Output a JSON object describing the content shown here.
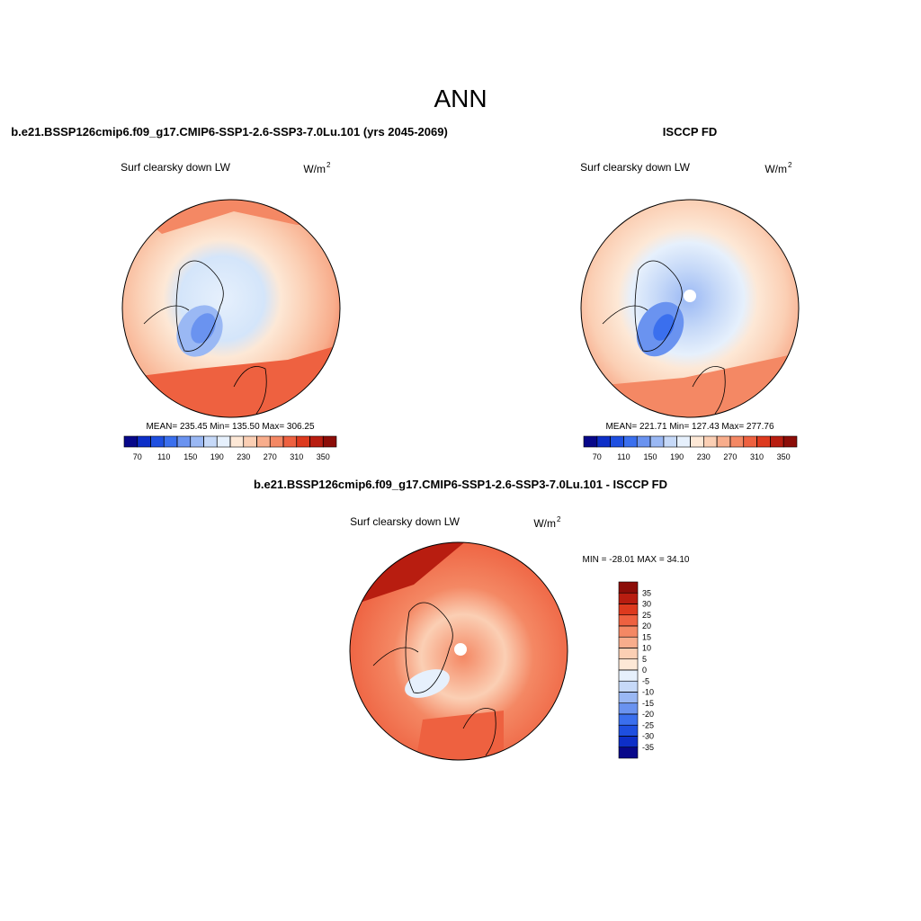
{
  "title": "ANN",
  "panels": [
    {
      "title": "b.e21.BSSP126cmip6.f09_g17.CMIP6-SSP1-2.6-SSP3-7.0Lu.101 (yrs 2045-2069)",
      "variable": "Surf clearsky down LW",
      "units": "W/m",
      "units_sup": "2",
      "stats": "MEAN= 235.45  Min= 135.50  Max= 306.25",
      "colorbar": {
        "levels": [
          70,
          90,
          110,
          130,
          150,
          170,
          190,
          210,
          230,
          250,
          270,
          290,
          310,
          330,
          350
        ],
        "ticks": [
          70,
          110,
          150,
          190,
          230,
          270,
          310,
          350
        ],
        "colors": [
          "#08088a",
          "#0d2fc8",
          "#1e4fe0",
          "#3a6fee",
          "#6a93f0",
          "#9ab8f4",
          "#c6d9f8",
          "#e6f0fc",
          "#fde8d6",
          "#fbcfb4",
          "#f8ad8c",
          "#f48864",
          "#ee6140",
          "#dd3a1e",
          "#b81d10",
          "#8c0d08"
        ]
      }
    },
    {
      "title": "ISCCP FD",
      "variable": "Surf clearsky down LW",
      "units": "W/m",
      "units_sup": "2",
      "stats": "MEAN= 221.71  Min= 127.43  Max= 277.76",
      "colorbar": {
        "levels": [
          70,
          90,
          110,
          130,
          150,
          170,
          190,
          210,
          230,
          250,
          270,
          290,
          310,
          330,
          350
        ],
        "ticks": [
          70,
          110,
          150,
          190,
          230,
          270,
          310,
          350
        ],
        "colors": [
          "#08088a",
          "#0d2fc8",
          "#1e4fe0",
          "#3a6fee",
          "#6a93f0",
          "#9ab8f4",
          "#c6d9f8",
          "#e6f0fc",
          "#fde8d6",
          "#fbcfb4",
          "#f8ad8c",
          "#f48864",
          "#ee6140",
          "#dd3a1e",
          "#b81d10",
          "#8c0d08"
        ]
      }
    },
    {
      "title": "b.e21.BSSP126cmip6.f09_g17.CMIP6-SSP1-2.6-SSP3-7.0Lu.101 - ISCCP FD",
      "variable": "Surf clearsky down LW",
      "units": "W/m",
      "units_sup": "2",
      "stats": "MIN = -28.01 MAX =  34.10",
      "colorbar": {
        "levels": [
          35,
          30,
          25,
          20,
          15,
          10,
          5,
          0,
          -5,
          -10,
          -15,
          -20,
          -25,
          -30,
          -35
        ],
        "colors": [
          "#8c0d08",
          "#b81d10",
          "#dd3a1e",
          "#ee6140",
          "#f48864",
          "#f8ad8c",
          "#fbcfb4",
          "#fde8d6",
          "#e6f0fc",
          "#c6d9f8",
          "#9ab8f4",
          "#6a93f0",
          "#3a6fee",
          "#1e4fe0",
          "#0d2fc8",
          "#08088a"
        ]
      }
    }
  ]
}
